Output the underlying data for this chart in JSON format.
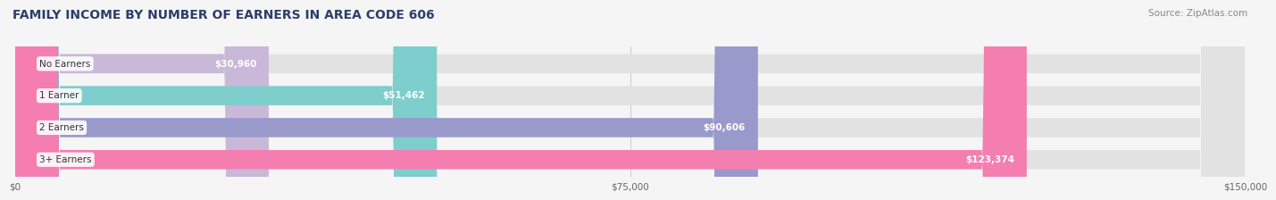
{
  "title": "FAMILY INCOME BY NUMBER OF EARNERS IN AREA CODE 606",
  "source": "Source: ZipAtlas.com",
  "categories": [
    "No Earners",
    "1 Earner",
    "2 Earners",
    "3+ Earners"
  ],
  "values": [
    30960,
    51462,
    90606,
    123374
  ],
  "value_labels": [
    "$30,960",
    "$51,462",
    "$90,606",
    "$123,374"
  ],
  "bar_colors": [
    "#c9b8d8",
    "#7ecece",
    "#9999cc",
    "#f47eb0"
  ],
  "bar_height": 0.6,
  "xlim": [
    0,
    150000
  ],
  "xticks": [
    0,
    75000,
    150000
  ],
  "xtick_labels": [
    "$0",
    "$75,000",
    "$150,000"
  ],
  "background_color": "#f5f5f5",
  "bar_bg_color": "#e2e2e2",
  "title_color": "#2c3e6b",
  "source_color": "#888888",
  "label_color": "#ffffff",
  "category_color": "#333333",
  "title_fontsize": 10,
  "source_fontsize": 7.5,
  "axis_fontsize": 7.5,
  "bar_label_fontsize": 7.5,
  "category_fontsize": 7.5
}
